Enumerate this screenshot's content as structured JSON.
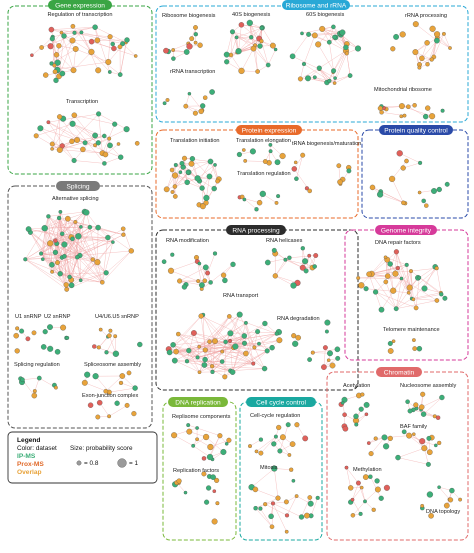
{
  "colors": {
    "ipms": "#3cae78",
    "proxms": "#e8a33a",
    "overlap": "#e0605a",
    "edge": "#f0a6a6"
  },
  "modules": {
    "gene_expression": {
      "header": "Gene expression",
      "color": "#3aa544",
      "labels": [
        "Regulation of transcription",
        "Transcription"
      ]
    },
    "ribosome": {
      "header": "Ribosome and rRNA",
      "color": "#29a8d6",
      "labels": [
        "Ribosome biogenesis",
        "40S biogenesis",
        "60S biogenesis",
        "rRNA processing",
        "rRNA transcription",
        "Mitochondrial ribosome"
      ]
    },
    "protein_expression": {
      "header": "Protein expression",
      "color": "#e86a2a",
      "labels": [
        "Translation initiation",
        "Translation elongation",
        "tRNA biogenesis/maturation",
        "Translation regulation"
      ]
    },
    "protein_quality": {
      "header": "Protein quality control",
      "color": "#2a4aa8",
      "labels": []
    },
    "splicing": {
      "header": "Splicing",
      "color": "#7a7a7a",
      "labels": [
        "Alternative splicing",
        "U1 snRNP",
        "U2 snRNP",
        "U4/U6.U5 snRNP",
        "Splicing regulation",
        "Spliceosome assembly",
        "Exon-junction complex"
      ]
    },
    "rna_processing": {
      "header": "RNA processing",
      "color": "#2c2c2c",
      "labels": [
        "RNA modification",
        "RNA helicases",
        "RNA transport",
        "RNA degradation"
      ]
    },
    "genome_integrity": {
      "header": "Genome integrity",
      "color": "#d63a9a",
      "labels": [
        "DNA repair factors",
        "Telomere maintenance"
      ]
    },
    "chromatin": {
      "header": "Chromatin",
      "color": "#e06a6a",
      "labels": [
        "Acetylation",
        "Nucleosome assembly",
        "BAF family",
        "Methylation",
        "DNA topology"
      ]
    },
    "dna_replication": {
      "header": "DNA replication",
      "color": "#7ab83a",
      "labels": [
        "Replisome components",
        "Replication factors"
      ]
    },
    "cell_cycle": {
      "header": "Cell cycle control",
      "color": "#1aa8a0",
      "labels": [
        "Cell-cycle regulation",
        "Mitosis"
      ]
    }
  },
  "legend": {
    "title": "Legend",
    "color_line": "Color: dataset",
    "ipms": "IP-MS",
    "proxms": "Prox-MS",
    "overlap": "Overlap",
    "size_line": "Size: probability score",
    "size_small": "= 0.8",
    "size_large": "= 1"
  }
}
